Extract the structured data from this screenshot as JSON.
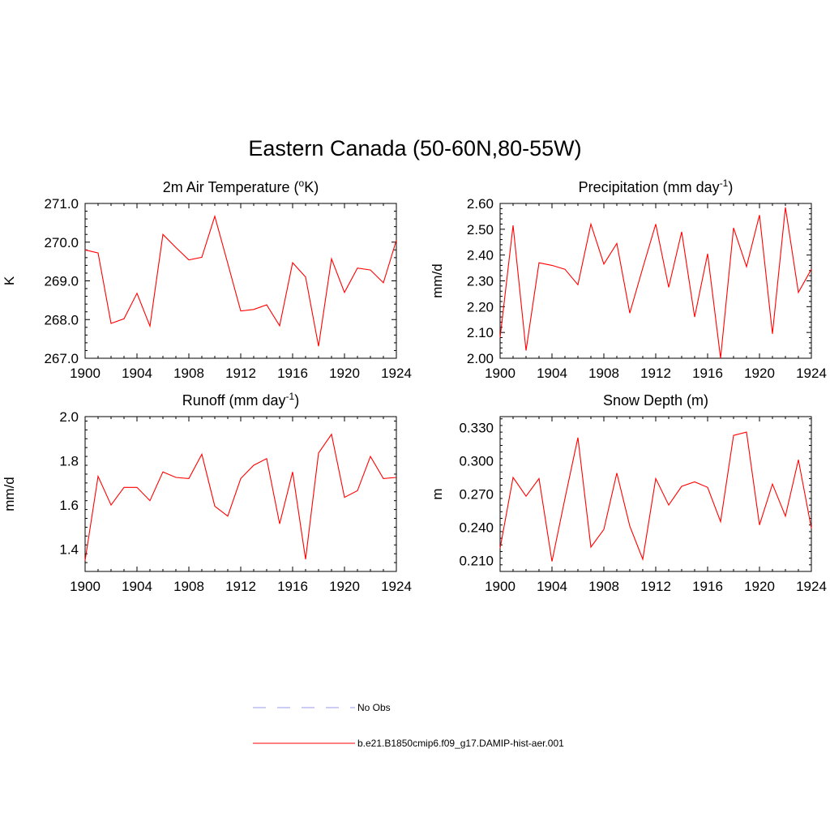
{
  "title": "Eastern Canada (50-60N,80-55W)",
  "legend": [
    {
      "label": "No Obs",
      "color": "#9999ee",
      "dashed": true
    },
    {
      "label": "b.e21.B1850cmip6.f09_g17.DAMIP-hist-aer.001",
      "color": "#ff0000",
      "dashed": false
    }
  ],
  "chart_data": [
    {
      "type": "line",
      "title": "2m Air Temperature (°K)",
      "ylabel": "K",
      "xlim": [
        1900,
        1924
      ],
      "ylim": [
        267.0,
        271.0
      ],
      "xticks": [
        "1900",
        "1904",
        "1908",
        "1912",
        "1916",
        "1920",
        "1924"
      ],
      "yticks": [
        "267.0",
        "268.0",
        "269.0",
        "270.0",
        "271.0"
      ],
      "x": [
        1900,
        1901,
        1902,
        1903,
        1904,
        1905,
        1906,
        1907,
        1908,
        1909,
        1910,
        1911,
        1912,
        1913,
        1914,
        1915,
        1916,
        1917,
        1918,
        1919,
        1920,
        1921,
        1922,
        1923,
        1924
      ],
      "series": [
        {
          "color": "#ff0000",
          "values": [
            269.8,
            269.72,
            267.9,
            268.02,
            268.68,
            267.83,
            270.2,
            269.86,
            269.54,
            269.61,
            270.67,
            269.45,
            268.22,
            268.26,
            268.38,
            267.84,
            269.47,
            269.1,
            267.31,
            269.57,
            268.7,
            269.33,
            269.28,
            268.95,
            270.05
          ]
        }
      ]
    },
    {
      "type": "line",
      "title": "Precipitation (mm day-1)",
      "ylabel": "mm/d",
      "xlim": [
        1900,
        1924
      ],
      "ylim": [
        2.0,
        2.6
      ],
      "xticks": [
        "1900",
        "1904",
        "1908",
        "1912",
        "1916",
        "1920",
        "1924"
      ],
      "yticks": [
        "2.00",
        "2.10",
        "2.20",
        "2.30",
        "2.40",
        "2.50",
        "2.60"
      ],
      "x": [
        1900,
        1901,
        1902,
        1903,
        1904,
        1905,
        1906,
        1907,
        1908,
        1909,
        1910,
        1911,
        1912,
        1913,
        1914,
        1915,
        1916,
        1917,
        1918,
        1919,
        1920,
        1921,
        1922,
        1923,
        1924
      ],
      "series": [
        {
          "color": "#ff0000",
          "values": [
            2.08,
            2.515,
            2.03,
            2.37,
            2.36,
            2.345,
            2.285,
            2.52,
            2.365,
            2.445,
            2.175,
            2.35,
            2.52,
            2.275,
            2.49,
            2.16,
            2.405,
            2.0,
            2.505,
            2.355,
            2.555,
            2.095,
            2.585,
            2.255,
            2.345
          ]
        }
      ]
    },
    {
      "type": "line",
      "title": "Runoff (mm day-1)",
      "ylabel": "mm/d",
      "xlim": [
        1900,
        1924
      ],
      "ylim": [
        1.3,
        2.0
      ],
      "xticks": [
        "1900",
        "1904",
        "1908",
        "1912",
        "1916",
        "1920",
        "1924"
      ],
      "yticks": [
        "1.4",
        "1.6",
        "1.8",
        "2.0"
      ],
      "x": [
        1900,
        1901,
        1902,
        1903,
        1904,
        1905,
        1906,
        1907,
        1908,
        1909,
        1910,
        1911,
        1912,
        1913,
        1914,
        1915,
        1916,
        1917,
        1918,
        1919,
        1920,
        1921,
        1922,
        1923,
        1924
      ],
      "series": [
        {
          "color": "#ff0000",
          "values": [
            1.35,
            1.73,
            1.6,
            1.68,
            1.68,
            1.62,
            1.75,
            1.725,
            1.72,
            1.83,
            1.595,
            1.55,
            1.72,
            1.78,
            1.81,
            1.515,
            1.75,
            1.355,
            1.835,
            1.92,
            1.635,
            1.665,
            1.82,
            1.72,
            1.725
          ]
        }
      ]
    },
    {
      "type": "line",
      "title": "Snow Depth (m)",
      "ylabel": "m",
      "xlim": [
        1900,
        1924
      ],
      "ylim": [
        0.2,
        0.34
      ],
      "xticks": [
        "1900",
        "1904",
        "1908",
        "1912",
        "1916",
        "1920",
        "1924"
      ],
      "yticks": [
        "0.210",
        "0.240",
        "0.270",
        "0.300",
        "0.330"
      ],
      "x": [
        1900,
        1901,
        1902,
        1903,
        1904,
        1905,
        1906,
        1907,
        1908,
        1909,
        1910,
        1911,
        1912,
        1913,
        1914,
        1915,
        1916,
        1917,
        1918,
        1919,
        1920,
        1921,
        1922,
        1923,
        1924
      ],
      "series": [
        {
          "color": "#ff0000",
          "values": [
            0.221,
            0.285,
            0.268,
            0.284,
            0.209,
            0.266,
            0.321,
            0.222,
            0.238,
            0.289,
            0.241,
            0.211,
            0.284,
            0.26,
            0.277,
            0.281,
            0.276,
            0.245,
            0.323,
            0.326,
            0.242,
            0.279,
            0.25,
            0.301,
            0.239
          ]
        }
      ]
    }
  ]
}
